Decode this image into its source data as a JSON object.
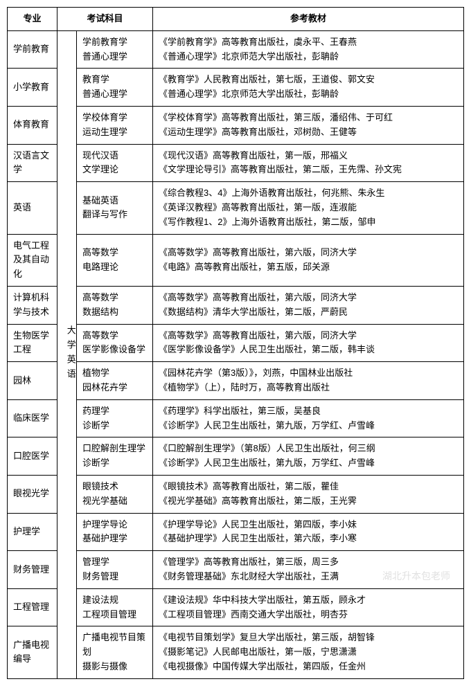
{
  "headers": {
    "major": "专业",
    "exam": "考试科目",
    "ref": "参考教材"
  },
  "exam_group_label": "大学英语",
  "watermark": "湖北升本包老师",
  "rows": [
    {
      "major": "学前教育",
      "subjects": "学前教育学\n普通心理学",
      "refs": "《学前教育学》高等教育出版社，虞永平、王春燕\n《普通心理学》北京师范大学出版社，彭聃龄"
    },
    {
      "major": "小学教育",
      "subjects": "教育学\n普通心理学",
      "refs": "《教育学》人民教育出版社，第七版，王道俊、郭文安\n《普通心理学》北京师范大学出版社，彭聃龄"
    },
    {
      "major": "体育教育",
      "subjects": "学校体育学\n运动生理学",
      "refs": "《学校体育学》高等教育出版社，第三版，潘绍伟、于可红\n《运动生理学》高等教育出版社，邓树勋、王健等"
    },
    {
      "major": "汉语言文学",
      "subjects": "现代汉语\n文学理论",
      "refs": "《现代汉语》高等教育出版社，第一版，邢福义\n《文学理论导引》高等教育出版社，第二版，王先霈、孙文宪"
    },
    {
      "major": "英语",
      "subjects": "基础英语\n翻译与写作",
      "refs": "《综合教程3、4》上海外语教育出版社，何兆熊、朱永生\n《英译汉教程》高等教育出版社，第一版，连淑能\n《写作教程1、2》上海外语教育出版社，第二版，邹申"
    },
    {
      "major": "电气工程及其自动化",
      "subjects": "高等数学\n电路理论",
      "refs": "《高等数学》高等教育出版社，第六版，同济大学\n《电路》高等教育出版社，第五版，邱关源"
    },
    {
      "major": "计算机科学与技术",
      "subjects": "高等数学\n数据结构",
      "refs": "《高等数学》高等教育出版社，第六版，同济大学\n《数据结构》清华大学出版社，第二版，严蔚民"
    },
    {
      "major": "生物医学工程",
      "subjects": "高等数学\n医学影像设备学",
      "refs": "《高等数学》高等教育出版社，第六版，同济大学\n《医学影像设备学》人民卫生出版社，第二版，韩丰谈"
    },
    {
      "major": "园林",
      "subjects": "植物学\n园林花卉学",
      "refs": "《园林花卉学（第3版）》，刘燕，中国林业出版社\n《植物学》（上），陆时万，高等教育出版社"
    },
    {
      "major": "临床医学",
      "subjects": "药理学\n诊断学",
      "refs": "《药理学》科学出版社，第三版，吴基良\n《诊断学》人民卫生出版社，第九版，万学红、卢雪峰"
    },
    {
      "major": "口腔医学",
      "subjects": "口腔解剖生理学\n诊断学",
      "refs": "《口腔解剖生理学》（第8版）人民卫生出版社，何三纲\n《诊断学》人民卫生出版社，第九版，万学红、卢雪峰"
    },
    {
      "major": "眼视光学",
      "subjects": "眼镜技术\n视光学基础",
      "refs": "《眼镜技术》高等教育出版社，第二版，瞿佳\n《视光学基础》高等教育出版社，第二版，王光霁"
    },
    {
      "major": "护理学",
      "subjects": "护理学导论\n基础护理学",
      "refs": "《护理学导论》人民卫生出版社，第四版，李小妹\n《基础护理学》人民卫生出版社，第六版，李小寒"
    },
    {
      "major": "财务管理",
      "subjects": "管理学\n财务管理",
      "refs": "《管理学》高等教育出版社，第三版，周三多\n《财务管理基础》东北财经大学出版社，王满"
    },
    {
      "major": "工程管理",
      "subjects": "建设法规\n工程项目管理",
      "refs": "《建设法规》华中科技大学出版社，第五版，顾永才\n《工程项目管理》西南交通大学出版社，明杏芬"
    },
    {
      "major": "广播电视编导",
      "subjects": "广播电视节目策划\n摄影与摄像",
      "refs": "《电视节目策划学》复旦大学出版社，第三版，胡智锋\n《摄影笔记》人民邮电出版社，第一版，宁思潇潇\n《电视摄像》中国传媒大学出版社，第四版，任金州"
    }
  ]
}
